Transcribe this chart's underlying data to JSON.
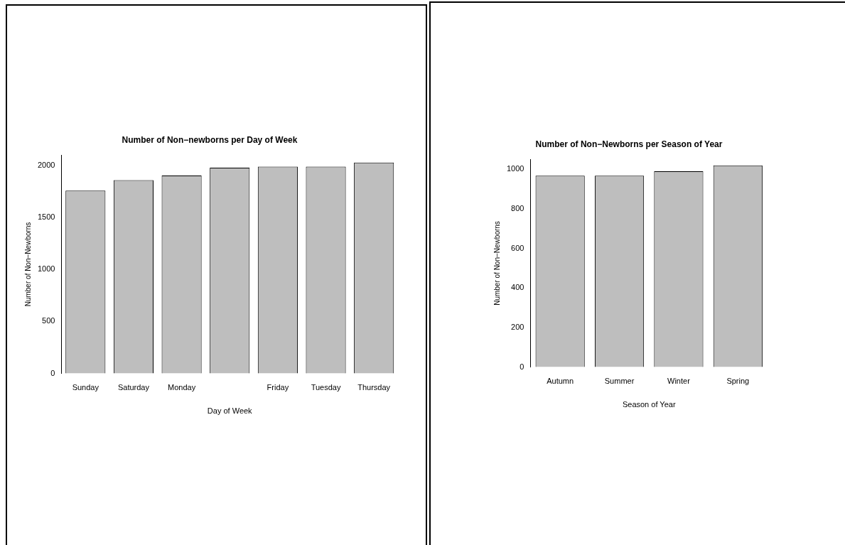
{
  "chart_data": [
    {
      "type": "bar",
      "title": "Number of Non−newborns per Day of Week",
      "xlabel": "Day of Week",
      "ylabel": "Number of Non−Newborns",
      "categories": [
        "Sunday",
        "Saturday",
        "Monday",
        null,
        "Friday",
        "Tuesday",
        "Thursday"
      ],
      "values": [
        1760,
        1860,
        1905,
        1980,
        1990,
        1990,
        2030
      ],
      "color": "#bebebe",
      "ylim": [
        0,
        2100
      ],
      "yticks": [
        0,
        500,
        1000,
        1500,
        2000
      ],
      "grid": false
    },
    {
      "type": "bar",
      "title": "Number of Non−Newborns per Season of Year",
      "xlabel": "Season of Year",
      "ylabel": "Number of Non−Newborns",
      "categories": [
        "Autumn",
        "Summer",
        "Winter",
        "Spring"
      ],
      "values": [
        968,
        968,
        990,
        1020
      ],
      "color": "#bebebe",
      "ylim": [
        0,
        1050
      ],
      "yticks": [
        0,
        200,
        400,
        600,
        800,
        1000
      ],
      "grid": false
    }
  ]
}
